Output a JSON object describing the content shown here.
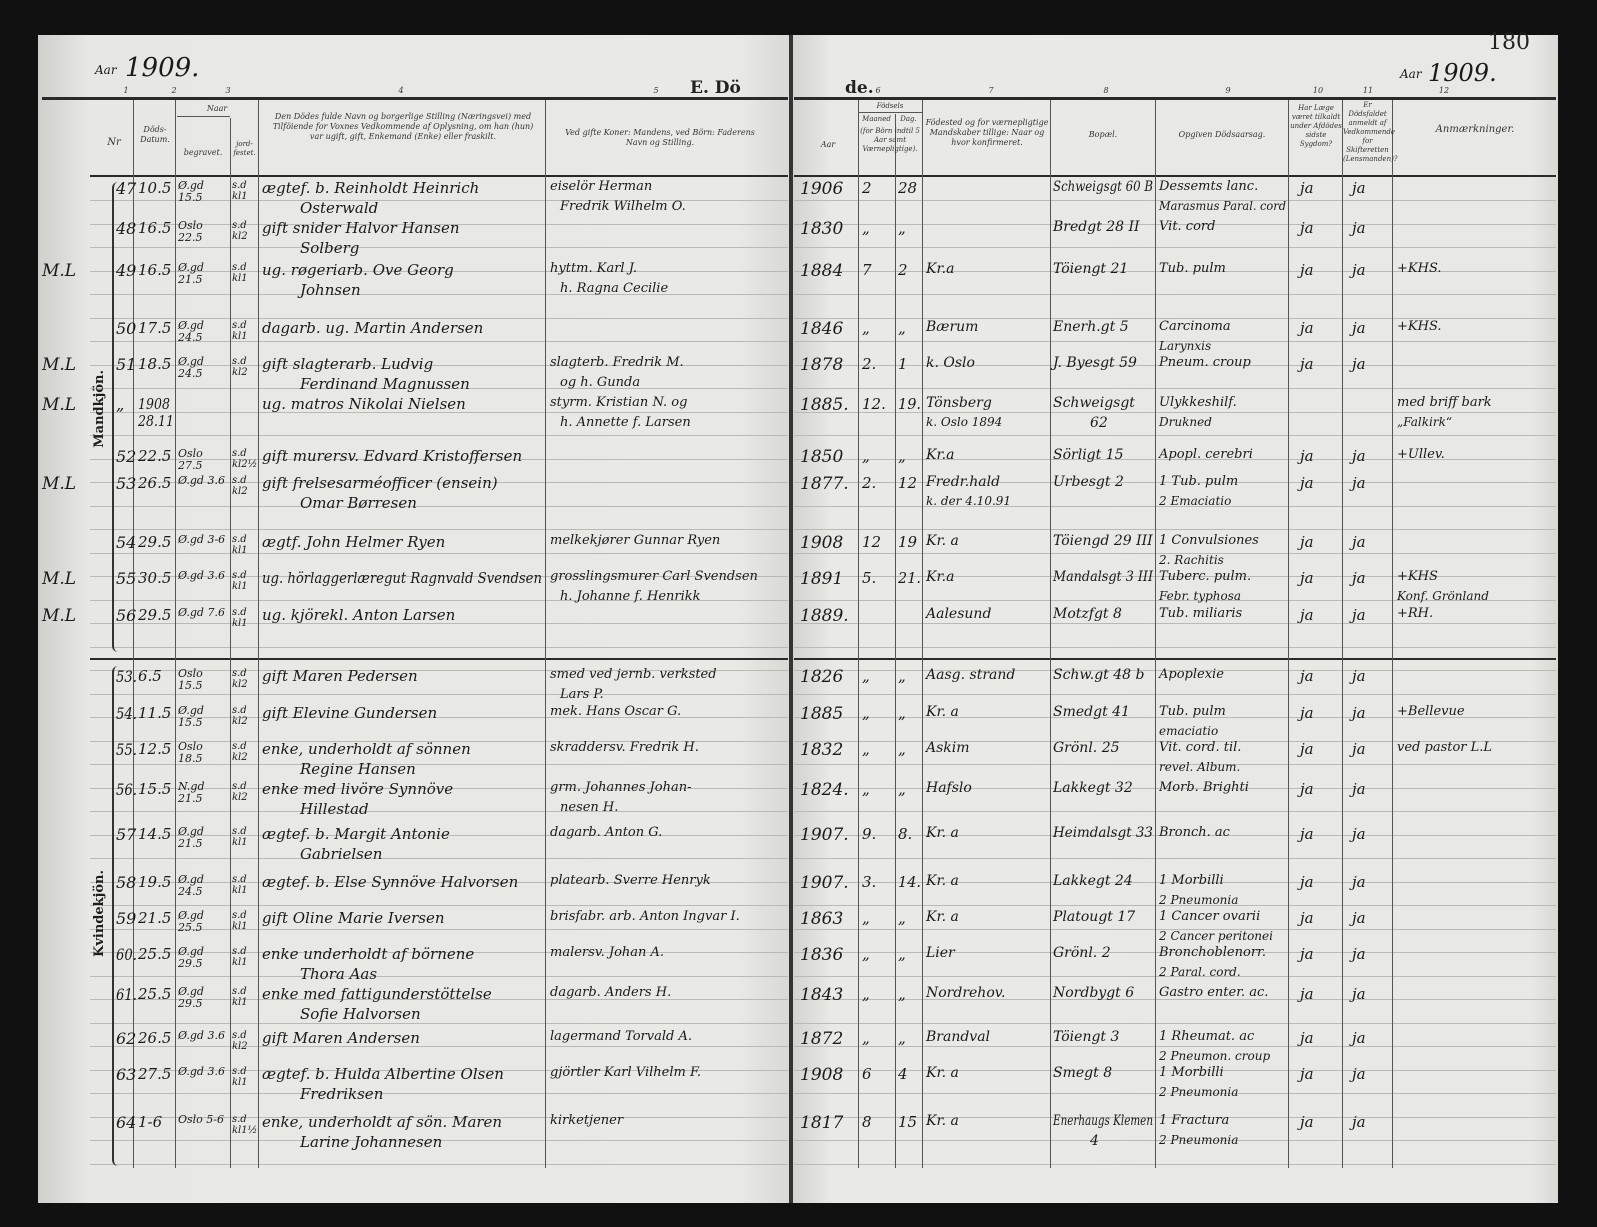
{
  "header": {
    "year_label_left": "Aar",
    "year_left": "1909.",
    "year_label_right": "Aar",
    "year_right": "1909.",
    "page_number": "180",
    "title_left": "E. Dö",
    "title_right": "de.",
    "column_numbers": [
      "1",
      "2",
      "3",
      "4",
      "5",
      "6",
      "7",
      "8",
      "9",
      "10",
      "11",
      "12"
    ]
  },
  "columns": {
    "nr": "Nr",
    "date": "Döds-Datum.",
    "naar": "Naar",
    "buried": "begravet.",
    "jord": "jord-festet.",
    "name": "Den Dödes fulde Navn og borgerlige Stilling (Næringsvei) med Tilföiende for Voxnes Vedkommende af Oplysning, om han (hun) var ugift, gift, Enkemand (Enke) eller fraskilt.",
    "parent": "Ved gifte Koner: Mandens, ved Börn: Faderens Navn og Stilling.",
    "year": "Aar",
    "fodsels": "Födsels",
    "month": "Maaned",
    "day": "Dag.",
    "md_note": "(for Börn indtil 5 Aar samt Værnepligtige).",
    "birthplace": "Födested og for værnepligtige Mandskaber tillige: Naar og hvor konfirmeret.",
    "residence": "Bopæl.",
    "cause": "Opgiven Dödsaarsag.",
    "doctor": "Har Læge været tilkaldt under Afdödes sidste Sygdom?",
    "skifte": "Er Dödsfaldet anmeldt af Vedkommende for Skifteretten (Lensmanden)?",
    "remarks": "Anmærkninger."
  },
  "sections": {
    "male": "Mandkjön.",
    "female": "Kvindekjön."
  },
  "male_rows": [
    {
      "margin": "",
      "nr": "47",
      "date": "10.5",
      "buried": "Ø.gd 15.5",
      "jord": "s.d kl1",
      "name": "ægtef. b. Reinholdt Heinrich",
      "name2": "Osterwald",
      "parent": "eiselör Herman",
      "parent2": "Fredrik Wilhelm O.",
      "year": "1906",
      "month": "2",
      "day": "28",
      "birthplace": "",
      "residence": "Schweigsgt 60 B",
      "cause": "Dessemts lanc.",
      "cause2": "Marasmus Paral. cord",
      "doctor": "ja",
      "skifte": "ja",
      "remarks": ""
    },
    {
      "margin": "",
      "nr": "48",
      "date": "16.5",
      "buried": "Oslo 22.5",
      "jord": "s.d kl2",
      "name": "gift snider Halvor Hansen",
      "name2": "Solberg",
      "parent": "",
      "parent2": "",
      "year": "1830",
      "month": "„",
      "day": "„",
      "birthplace": "",
      "residence": "Bredgt 28 II",
      "cause": "Vit. cord",
      "cause2": "",
      "doctor": "ja",
      "skifte": "ja",
      "remarks": ""
    },
    {
      "margin": "M.L",
      "nr": "49",
      "date": "16.5",
      "buried": "Ø.gd 21.5",
      "jord": "s.d kl1",
      "name": "ug. røgeriarb. Ove Georg",
      "name2": "Johnsen",
      "parent": "hyttm. Karl J.",
      "parent2": "h. Ragna Cecilie",
      "year": "1884",
      "month": "7",
      "day": "2",
      "birthplace": "Kr.a",
      "residence": "Töiengt 21",
      "cause": "Tub. pulm",
      "cause2": "",
      "doctor": "ja",
      "skifte": "ja",
      "remarks": "+KHS."
    },
    {
      "margin": "",
      "nr": "50",
      "date": "17.5",
      "buried": "Ø.gd 24.5",
      "jord": "s.d kl1",
      "name": "dagarb. ug. Martin Andersen",
      "name2": "",
      "parent": "",
      "parent2": "",
      "year": "1846",
      "month": "„",
      "day": "„",
      "birthplace": "Bærum",
      "residence": "Enerh.gt 5",
      "cause": "Carcinoma",
      "cause2": "Larynxis",
      "doctor": "ja",
      "skifte": "ja",
      "remarks": "+KHS."
    },
    {
      "margin": "M.L",
      "nr": "51",
      "date": "18.5",
      "buried": "Ø.gd 24.5",
      "jord": "s.d kl2",
      "name": "gift slagterarb. Ludvig",
      "name2": "Ferdinand Magnussen",
      "parent": "slagterb. Fredrik M.",
      "parent2": "og h. Gunda",
      "year": "1878",
      "month": "2.",
      "day": "1",
      "birthplace": "k. Oslo",
      "residence": "J. Byesgt 59",
      "cause": "Pneum. croup",
      "cause2": "",
      "doctor": "ja",
      "skifte": "ja",
      "remarks": ""
    },
    {
      "margin": "M.L",
      "nr": "„",
      "date": "1908 28.11",
      "buried": "",
      "jord": "",
      "name": "ug. matros Nikolai Nielsen",
      "name2": "",
      "parent": "styrm. Kristian N. og",
      "parent2": "h. Annette f. Larsen",
      "year": "1885.",
      "month": "12.",
      "day": "19.",
      "birthplace": "Tönsberg",
      "birthplace2": "k. Oslo 1894",
      "residence": "Schweigsgt",
      "residence2": "62",
      "cause": "Ulykkeshilf.",
      "cause2": "Drukned",
      "doctor": "",
      "skifte": "",
      "remarks": "med briff bark",
      "remarks2": "„Falkirk“"
    },
    {
      "margin": "",
      "nr": "52",
      "date": "22.5",
      "buried": "Oslo 27.5",
      "jord": "s.d kl2½",
      "name": "gift murersv. Edvard Kristoffersen",
      "name2": "",
      "parent": "",
      "parent2": "",
      "year": "1850",
      "month": "„",
      "day": "„",
      "birthplace": "Kr.a",
      "residence": "Sörligt 15",
      "cause": "Apopl. cerebri",
      "cause2": "",
      "doctor": "ja",
      "skifte": "ja",
      "remarks": "+Ullev."
    },
    {
      "margin": "M.L",
      "nr": "53",
      "date": "26.5",
      "buried": "Ø.gd 3.6",
      "jord": "s.d kl2",
      "name": "gift frelsesarméofficer (ensein)",
      "name2": "Omar Børresen",
      "parent": "",
      "parent2": "",
      "year": "1877.",
      "month": "2.",
      "day": "12",
      "birthplace": "Fredr.hald",
      "birthplace2": "k. der 4.10.91",
      "residence": "Urbesgt 2",
      "cause": "1 Tub. pulm",
      "cause2": "2 Emaciatio",
      "doctor": "ja",
      "skifte": "ja",
      "remarks": ""
    },
    {
      "margin": "",
      "nr": "54",
      "date": "29.5",
      "buried": "Ø.gd 3-6",
      "jord": "s.d kl1",
      "name": "ægtf. John Helmer Ryen",
      "name2": "",
      "parent": "melkekjører Gunnar Ryen",
      "parent2": "",
      "year": "1908",
      "month": "12",
      "day": "19",
      "birthplace": "Kr. a",
      "residence": "Töiengd 29 III",
      "cause": "1 Convulsiones",
      "cause2": "2. Rachitis",
      "doctor": "ja",
      "skifte": "ja",
      "remarks": ""
    },
    {
      "margin": "M.L",
      "nr": "55",
      "date": "30.5",
      "buried": "Ø.gd 3.6",
      "jord": "s.d kl1",
      "name": "ug. hörlaggerlæregut Ragnvald Svendsen",
      "name2": "",
      "parent": "grosslingsmurer Carl Svendsen",
      "parent2": "h. Johanne f. Henrikk",
      "year": "1891",
      "month": "5.",
      "day": "21.",
      "birthplace": "Kr.a",
      "residence": "Mandalsgt 3 III",
      "cause": "Tuberc. pulm.",
      "cause2": "Febr. typhosa",
      "doctor": "ja",
      "skifte": "ja",
      "remarks": "+KHS",
      "remarks2": "Konf. Grönland"
    },
    {
      "margin": "M.L",
      "nr": "56",
      "date": "29.5",
      "buried": "Ø.gd 7.6",
      "jord": "s.d kl1",
      "name": "ug. kjörekl. Anton Larsen",
      "name2": "",
      "parent": "",
      "parent2": "",
      "year": "1889.",
      "month": "",
      "day": "",
      "birthplace": "Aalesund",
      "residence": "Motzfgt 8",
      "cause": "Tub. miliaris",
      "cause2": "",
      "doctor": "ja",
      "skifte": "ja",
      "remarks": "+RH."
    }
  ],
  "female_rows": [
    {
      "nr": "53.",
      "date": "6.5",
      "buried": "Oslo 15.5",
      "jord": "s.d kl2",
      "name": "gift Maren Pedersen",
      "name2": "",
      "parent": "smed ved jernb. verksted",
      "parent2": "Lars P.",
      "year": "1826",
      "month": "„",
      "day": "„",
      "birthplace": "Aasg. strand",
      "residence": "Schw.gt 48 b",
      "cause": "Apoplexie",
      "cause2": "",
      "doctor": "ja",
      "skifte": "ja",
      "remarks": ""
    },
    {
      "nr": "54.",
      "date": "11.5",
      "buried": "Ø.gd 15.5",
      "jord": "s.d kl2",
      "name": "gift Elevine Gundersen",
      "name2": "",
      "parent": "mek. Hans Oscar G.",
      "parent2": "",
      "year": "1885",
      "month": "„",
      "day": "„",
      "birthplace": "Kr. a",
      "residence": "Smedgt 41",
      "cause": "Tub. pulm",
      "cause2": "emaciatio",
      "doctor": "ja",
      "skifte": "ja",
      "remarks": "+Bellevue"
    },
    {
      "nr": "55.",
      "date": "12.5",
      "buried": "Oslo 18.5",
      "jord": "s.d kl2",
      "name": "enke, underholdt af sönnen",
      "name2": "Regine Hansen",
      "parent": "skraddersv. Fredrik H.",
      "parent2": "",
      "year": "1832",
      "month": "„",
      "day": "„",
      "birthplace": "Askim",
      "residence": "Grönl. 25",
      "cause": "Vit. cord. til.",
      "cause2": "revel. Album.",
      "doctor": "ja",
      "skifte": "ja",
      "remarks": "ved pastor L.L"
    },
    {
      "nr": "56.",
      "date": "15.5",
      "buried": "N.gd 21.5",
      "jord": "s.d kl2",
      "name": "enke med livöre Synnöve",
      "name2": "Hillestad",
      "parent": "grm. Johannes Johan-",
      "parent2": "nesen H.",
      "year": "1824.",
      "month": "„",
      "day": "„",
      "birthplace": "Hafslo",
      "residence": "Lakkegt 32",
      "cause": "Morb. Brighti",
      "cause2": "",
      "doctor": "ja",
      "skifte": "ja",
      "remarks": ""
    },
    {
      "nr": "57",
      "date": "14.5",
      "buried": "Ø.gd 21.5",
      "jord": "s.d kl1",
      "name": "ægtef. b. Margit Antonie",
      "name2": "Gabrielsen",
      "parent": "dagarb. Anton G.",
      "parent2": "",
      "year": "1907.",
      "month": "9.",
      "day": "8.",
      "birthplace": "Kr. a",
      "residence": "Heimdalsgt 33",
      "cause": "Bronch. ac",
      "cause2": "",
      "doctor": "ja",
      "skifte": "ja",
      "remarks": ""
    },
    {
      "nr": "58",
      "date": "19.5",
      "buried": "Ø.gd 24.5",
      "jord": "s.d kl1",
      "name": "ægtef. b. Else Synnöve Halvorsen",
      "name2": "",
      "parent": "platearb. Sverre Henryk",
      "parent2": "",
      "year": "1907.",
      "month": "3.",
      "day": "14.",
      "birthplace": "Kr. a",
      "residence": "Lakkegt 24",
      "cause": "1 Morbilli",
      "cause2": "2 Pneumonia",
      "doctor": "ja",
      "skifte": "ja",
      "remarks": ""
    },
    {
      "nr": "59",
      "date": "21.5",
      "buried": "Ø.gd 25.5",
      "jord": "s.d kl1",
      "name": "gift Oline Marie Iversen",
      "name2": "",
      "parent": "brisfabr. arb. Anton Ingvar I.",
      "parent2": "",
      "year": "1863",
      "month": "„",
      "day": "„",
      "birthplace": "Kr. a",
      "residence": "Platougt 17",
      "cause": "1 Cancer ovarii",
      "cause2": "2 Cancer peritonei",
      "doctor": "ja",
      "skifte": "ja",
      "remarks": ""
    },
    {
      "nr": "60.",
      "date": "25.5",
      "buried": "Ø.gd 29.5",
      "jord": "s.d kl1",
      "name": "enke underholdt af börnene",
      "name2": "Thora Aas",
      "parent": "malersv. Johan A.",
      "parent2": "",
      "year": "1836",
      "month": "„",
      "day": "„",
      "birthplace": "Lier",
      "residence": "Grönl. 2",
      "cause": "Bronchoblenorr.",
      "cause2": "2 Paral. cord.",
      "doctor": "ja",
      "skifte": "ja",
      "remarks": ""
    },
    {
      "nr": "61.",
      "date": "25.5",
      "buried": "Ø.gd 29.5",
      "jord": "s.d kl1",
      "name": "enke med fattigunderstöttelse",
      "name2": "Sofie Halvorsen",
      "parent": "dagarb. Anders H.",
      "parent2": "",
      "year": "1843",
      "month": "„",
      "day": "„",
      "birthplace": "Nordrehov.",
      "residence": "Nordbygt 6",
      "cause": "Gastro enter. ac.",
      "cause2": "",
      "doctor": "ja",
      "skifte": "ja",
      "remarks": ""
    },
    {
      "nr": "62",
      "date": "26.5",
      "buried": "Ø.gd 3.6",
      "jord": "s.d kl2",
      "name": "gift Maren Andersen",
      "name2": "",
      "parent": "lagermand Torvald A.",
      "parent2": "",
      "year": "1872",
      "month": "„",
      "day": "„",
      "birthplace": "Brandval",
      "residence": "Töiengt 3",
      "cause": "1 Rheumat. ac",
      "cause2": "2 Pneumon. croup",
      "doctor": "ja",
      "skifte": "ja",
      "remarks": ""
    },
    {
      "nr": "63",
      "date": "27.5",
      "buried": "Ø.gd 3.6",
      "jord": "s.d kl1",
      "name": "ægtef. b. Hulda Albertine Olsen",
      "name2": "Fredriksen",
      "parent": "gjörtler Karl Vilhelm F.",
      "parent2": "",
      "year": "1908",
      "month": "6",
      "day": "4",
      "birthplace": "Kr. a",
      "residence": "Smegt 8",
      "cause": "1 Morbilli",
      "cause2": "2 Pneumonia",
      "doctor": "ja",
      "skifte": "ja",
      "remarks": ""
    },
    {
      "nr": "64",
      "date": "1-6",
      "buried": "Oslo 5-6",
      "jord": "s.d kl1½",
      "name": "enke, underholdt af sön. Maren",
      "name2": "Larine Johannesen",
      "parent": "kirketjener",
      "parent2": "",
      "year": "1817",
      "month": "8",
      "day": "15",
      "birthplace": "Kr. a",
      "residence": "Enerhaugs Klemen",
      "residence2": "4",
      "cause": "1 Fractura",
      "cause2": "2 Pneumonia",
      "doctor": "ja",
      "skifte": "ja",
      "remarks": ""
    }
  ]
}
